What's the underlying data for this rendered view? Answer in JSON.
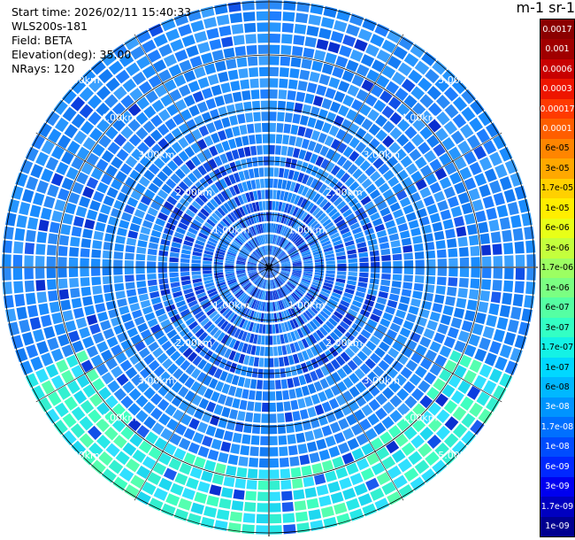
{
  "info": {
    "start_time": "Start time: 2026/02/11 15:40:33",
    "instrument": "WLS200s-181",
    "field": "Field: BETA",
    "elevation": "Elevation(deg): 35.00",
    "nrays": "NRays: 120"
  },
  "ppi": {
    "rings": [
      "1.00km",
      "2.00km",
      "3.00km",
      "4.00km",
      "5.00km"
    ],
    "max_range_km": 5.0,
    "nrays": 120
  },
  "colorbar": {
    "title": "m-1 sr-1",
    "levels": [
      {
        "label": "0.0017",
        "color": "#8b0000"
      },
      {
        "label": "0.001",
        "color": "#a00000"
      },
      {
        "label": "0.0006",
        "color": "#c80000"
      },
      {
        "label": "0.0003",
        "color": "#ee1500"
      },
      {
        "label": "0.00017",
        "color": "#ff3a00"
      },
      {
        "label": "0.0001",
        "color": "#ff5e00"
      },
      {
        "label": "6e-05",
        "color": "#ff8500"
      },
      {
        "label": "3e-05",
        "color": "#ffa800"
      },
      {
        "label": "1.7e-05",
        "color": "#ffd000"
      },
      {
        "label": "1e-05",
        "color": "#ffee00"
      },
      {
        "label": "6e-06",
        "color": "#e8ff17"
      },
      {
        "label": "3e-06",
        "color": "#c4ff3c"
      },
      {
        "label": "1.7e-06",
        "color": "#9cff62"
      },
      {
        "label": "1e-06",
        "color": "#7bff82"
      },
      {
        "label": "6e-07",
        "color": "#55ffa3"
      },
      {
        "label": "3e-07",
        "color": "#33ffc4"
      },
      {
        "label": "1.7e-07",
        "color": "#14f2e5"
      },
      {
        "label": "1e-07",
        "color": "#00d8ff"
      },
      {
        "label": "6e-08",
        "color": "#00b8ff"
      },
      {
        "label": "3e-08",
        "color": "#0094ff"
      },
      {
        "label": "1.7e-08",
        "color": "#0070ff"
      },
      {
        "label": "1e-08",
        "color": "#004cff"
      },
      {
        "label": "6e-09",
        "color": "#0028ff"
      },
      {
        "label": "3e-09",
        "color": "#0000f0"
      },
      {
        "label": "1.7e-09",
        "color": "#0000c0"
      },
      {
        "label": "1e-09",
        "color": "#000090"
      }
    ]
  }
}
